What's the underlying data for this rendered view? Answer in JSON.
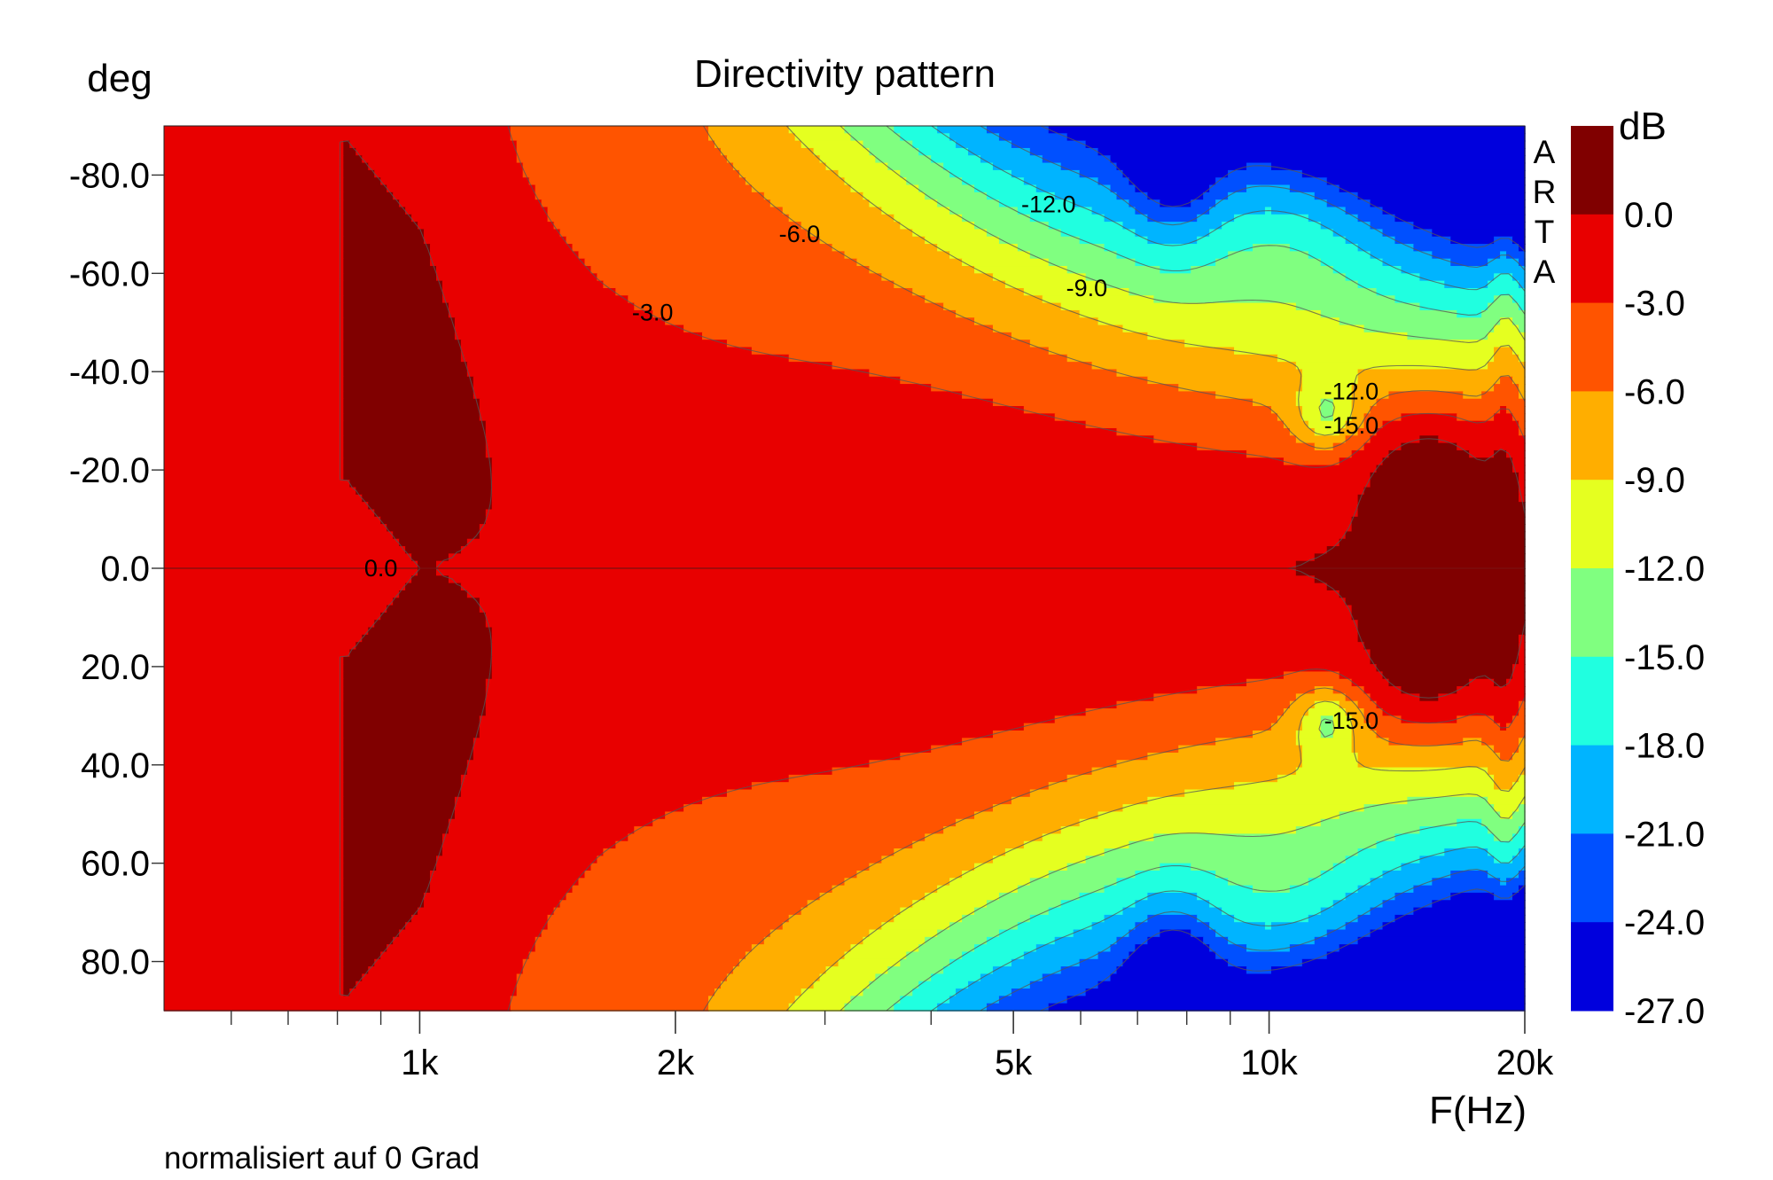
{
  "chart_data": {
    "type": "heatmap",
    "title": "Directivity pattern",
    "ylabel": "deg",
    "xlabel": "F(Hz)",
    "colorbar_label": "dB",
    "watermark": "ARTA",
    "note": "normalisiert auf 0 Grad",
    "x_scale": "log",
    "xlim": [
      500,
      20000
    ],
    "ylim": [
      -90,
      90
    ],
    "y_ticks": [
      -80,
      -60,
      -40,
      -20,
      0,
      20,
      40,
      60,
      80
    ],
    "y_tick_labels": [
      "-80.0",
      "-60.0",
      "-40.0",
      "-20.0",
      "0.0",
      "20.0",
      "40.0",
      "60.0",
      "80.0"
    ],
    "x_major_ticks": [
      1000,
      2000,
      5000,
      10000,
      20000
    ],
    "x_tick_labels": [
      "1k",
      "2k",
      "5k",
      "10k",
      "20k"
    ],
    "x_minor_ticks": [
      600,
      700,
      800,
      900,
      3000,
      4000,
      6000,
      7000,
      8000,
      9000
    ],
    "levels": [
      3,
      0,
      -3,
      -6,
      -9,
      -12,
      -15,
      -18,
      -21,
      -24,
      -27
    ],
    "level_labels": [
      "0.0",
      "-3.0",
      "-6.0",
      "-9.0",
      "-12.0",
      "-15.0",
      "-18.0",
      "-21.0",
      "-24.0",
      "-27.0"
    ],
    "level_colors": [
      "#800000",
      "#e80000",
      "#ff5400",
      "#ffae00",
      "#e5ff20",
      "#80ff80",
      "#20ffe0",
      "#00b4ff",
      "#0050ff",
      "#0000dd"
    ],
    "contour_labels": [
      {
        "text": "0.0",
        "freq": 900,
        "angle": 0
      },
      {
        "text": "-3.0",
        "freq": 1880,
        "angle": -52
      },
      {
        "text": "-6.0",
        "freq": 2800,
        "angle": -68
      },
      {
        "text": "-9.0",
        "freq": 6100,
        "angle": -57
      },
      {
        "text": "-12.0",
        "freq": 5500,
        "angle": -74
      },
      {
        "text": "-12.0",
        "freq": 12500,
        "angle": -36
      },
      {
        "text": "-15.0",
        "freq": 12500,
        "angle": -29
      },
      {
        "text": "-15.0",
        "freq": 12500,
        "angle": 31
      }
    ]
  }
}
